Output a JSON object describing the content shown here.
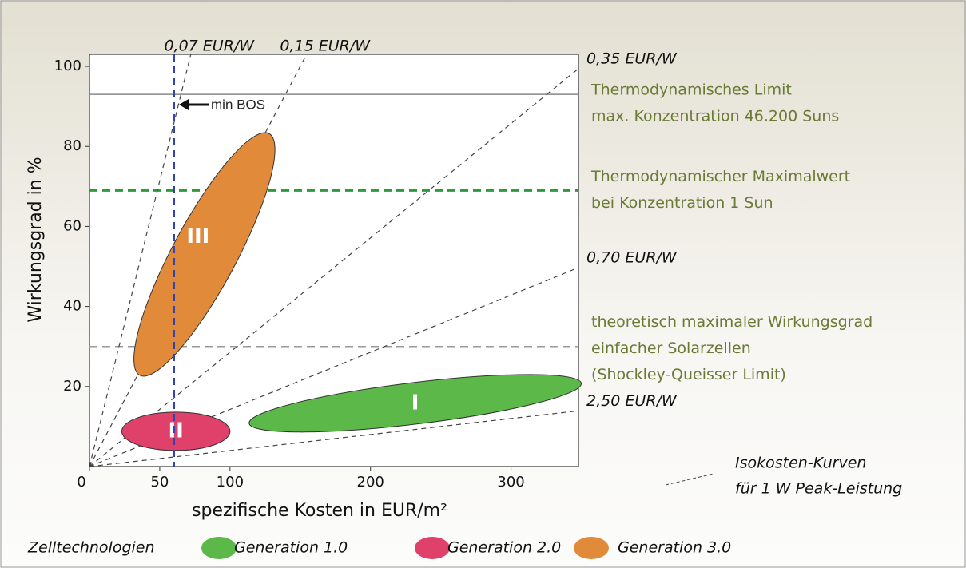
{
  "chart_data": {
    "type": "ellipse-regions",
    "x_label": "spezifische Kosten in EUR/m²",
    "y_label": "Wirkungsgrad in %",
    "xlim": [
      0,
      348
    ],
    "ylim": [
      0,
      103
    ],
    "xticks": [
      0,
      50,
      100,
      200,
      300
    ],
    "yticks": [
      20,
      40,
      60,
      80,
      100
    ],
    "isocost_lines": [
      {
        "label": "0,07 EUR/W",
        "value": 0.07
      },
      {
        "label": "0,15 EUR/W",
        "value": 0.15
      },
      {
        "label": "0,35 EUR/W",
        "value": 0.35
      },
      {
        "label": "0,70 EUR/W",
        "value": 0.7
      },
      {
        "label": "2,50 EUR/W",
        "value": 2.5
      }
    ],
    "isocost_legend": [
      "Isokosten-Kurven",
      "für 1 W Peak-Leistung"
    ],
    "reference_lines": [
      {
        "value": 93,
        "color": "#888888",
        "dashed": false,
        "label_lines": [
          "Thermodynamisches Limit",
          "max. Konzentration 46.200 Suns"
        ]
      },
      {
        "value": 69,
        "color": "#2e9a3a",
        "dashed": true,
        "label_lines": [
          "Thermodynamischer Maximalwert",
          "bei Konzentration 1 Sun"
        ]
      },
      {
        "value": 30,
        "color": "#999999",
        "dashed": true,
        "label_lines": [
          "theoretisch maximaler Wirkungsgrad",
          "einfacher Solarzellen",
          "(Shockley-Queisser Limit)"
        ]
      }
    ],
    "vertical_line": {
      "value": 60,
      "color": "#3344aa",
      "annotation": "min BOS"
    },
    "legend_title": "Zelltechnologien",
    "series": [
      {
        "name": "Generation 1.0",
        "color": "#5cb848",
        "region_label": "I",
        "axis_start": [
          113.6,
          10.8
        ],
        "axis_end": [
          350,
          20.8
        ]
      },
      {
        "name": "Generation 2.0",
        "color": "#e0416a",
        "region_label": "II",
        "axis_start": [
          23,
          8.8
        ],
        "axis_end": [
          100,
          8.8
        ]
      },
      {
        "name": "Generation 3.0",
        "color": "#e08a3a",
        "region_label": "III",
        "axis_start": [
          35.8,
          22.8
        ],
        "axis_end": [
          127.8,
          83.2
        ]
      }
    ]
  }
}
